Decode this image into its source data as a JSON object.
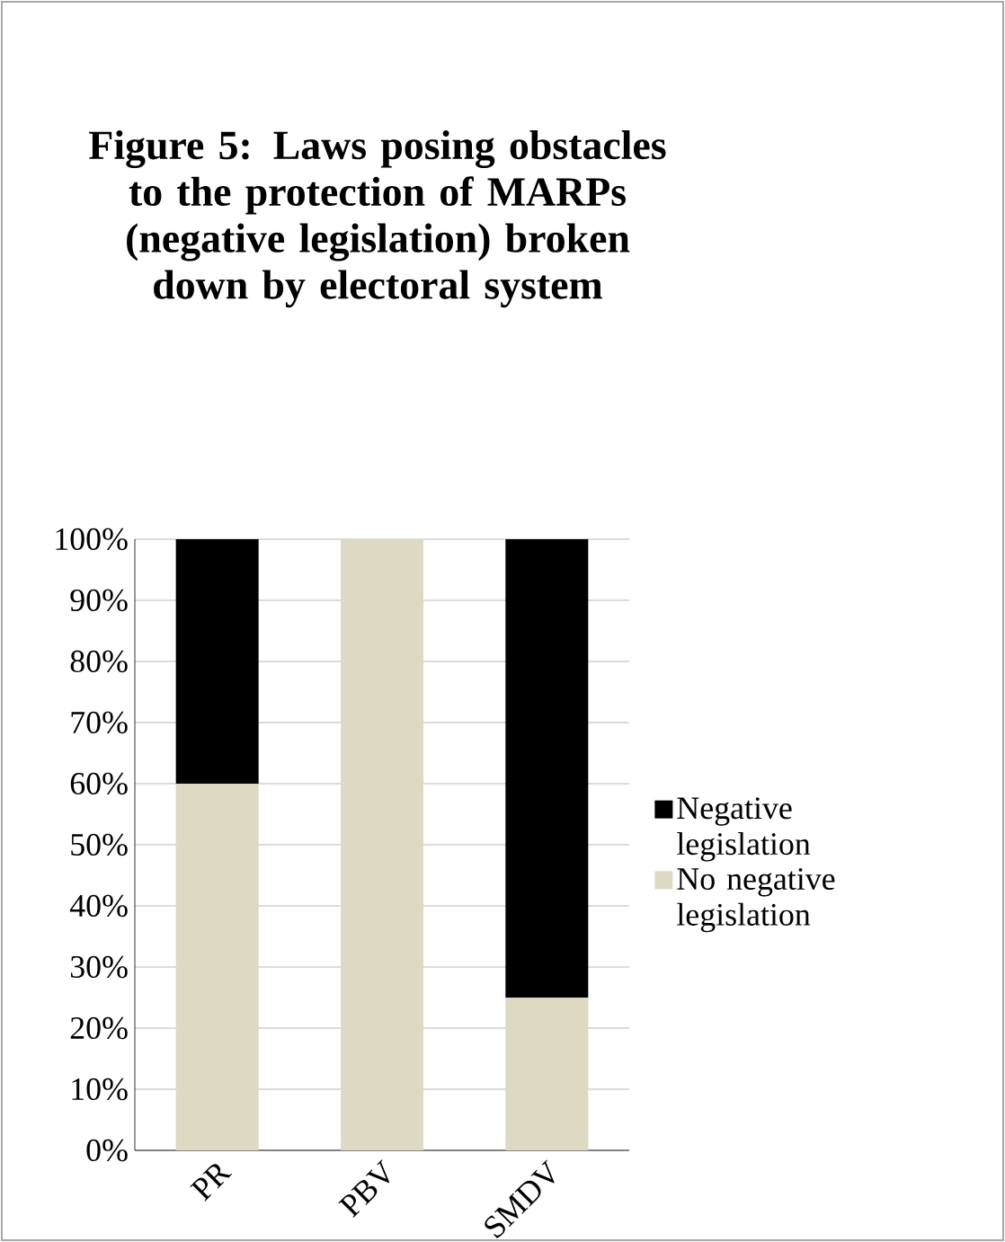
{
  "chart_data": {
    "type": "bar",
    "stacked": true,
    "title": "Figure 5: Laws posing obstacles to the protection of MARPs (negative legislation) broken down by electoral system",
    "categories": [
      "PR",
      "PBV",
      "SMDV"
    ],
    "series": [
      {
        "name": "No negative legislation",
        "color": "#ddd9c3",
        "values": [
          60,
          100,
          25
        ]
      },
      {
        "name": "Negative legislation",
        "color": "#000000",
        "values": [
          40,
          0,
          75
        ]
      }
    ],
    "ylim": [
      0,
      100
    ],
    "yticks": [
      {
        "value": 0,
        "label": "0%"
      },
      {
        "value": 10,
        "label": "10%"
      },
      {
        "value": 20,
        "label": "20%"
      },
      {
        "value": 30,
        "label": "30%"
      },
      {
        "value": 40,
        "label": "40%"
      },
      {
        "value": 50,
        "label": "50%"
      },
      {
        "value": 60,
        "label": "60%"
      },
      {
        "value": 70,
        "label": "70%"
      },
      {
        "value": 80,
        "label": "80%"
      },
      {
        "value": 90,
        "label": "90%"
      },
      {
        "value": 100,
        "label": "100%"
      }
    ],
    "grid": "y",
    "legend": "right"
  }
}
